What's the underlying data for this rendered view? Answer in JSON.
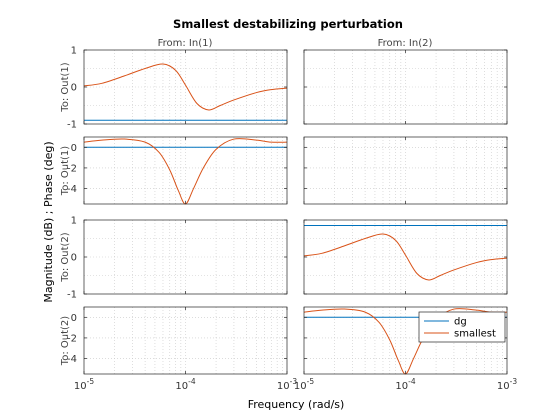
{
  "chart_data": {
    "type": "line",
    "title": "Smallest destabilizing perturbation",
    "xlabel": "Frequency  (rad/s)",
    "ylabel": "Magnitude (dB) ; Phase (deg)",
    "xscale": "log",
    "xlim": [
      1e-05,
      0.001
    ],
    "x_tick_labels": [
      "10^-5",
      "10^-4",
      "10^-3"
    ],
    "column_titles": [
      "From: In(1)",
      "From: In(2)"
    ],
    "row_titles": [
      "To: Out(1)",
      "To: Out(1)",
      "To: Out(2)",
      "To: Out(2)"
    ],
    "grid": true,
    "legend": {
      "placement": "inside-bottom-right",
      "panel": "row4-col2",
      "entries": [
        "dg",
        "smallest"
      ]
    },
    "series_colors": {
      "dg": "#0072bd",
      "smallest": "#d95319"
    },
    "panels": [
      {
        "row": 1,
        "col": 1,
        "quantity": "magnitude",
        "ylim": [
          -1,
          1
        ],
        "y_ticks": [
          -1,
          0,
          1
        ],
        "y_tick_labels": [
          "-1",
          "0",
          "1"
        ],
        "series": [
          {
            "name": "dg",
            "x": [
              1e-05,
              0.001
            ],
            "values": [
              -0.9,
              -0.9
            ]
          },
          {
            "name": "smallest",
            "x": [
              1e-05,
              1.5e-05,
              2.5e-05,
              4e-05,
              6e-05,
              8e-05,
              0.0001,
              0.00013,
              0.00017,
              0.00022,
              0.0003,
              0.0005,
              0.0007,
              0.001
            ],
            "values": [
              0.03,
              0.1,
              0.3,
              0.5,
              0.62,
              0.45,
              0.05,
              -0.45,
              -0.62,
              -0.5,
              -0.35,
              -0.15,
              -0.07,
              -0.03
            ]
          }
        ]
      },
      {
        "row": 2,
        "col": 1,
        "quantity": "phase",
        "ylim": [
          -5.5,
          1
        ],
        "y_ticks": [
          0,
          -2,
          -4
        ],
        "y_tick_labels": [
          "0",
          "-2",
          "-4"
        ],
        "series": [
          {
            "name": "dg",
            "x": [
              1e-05,
              0.001
            ],
            "values": [
              0,
              0
            ]
          },
          {
            "name": "smallest",
            "x": [
              1e-05,
              1.5e-05,
              2.5e-05,
              4e-05,
              5.5e-05,
              7e-05,
              8.5e-05,
              0.0001,
              0.00012,
              0.00015,
              0.0002,
              0.0003,
              0.0005,
              0.0007,
              0.001
            ],
            "values": [
              0.5,
              0.7,
              0.8,
              0.5,
              -0.5,
              -2.2,
              -4.2,
              -5.5,
              -4.0,
              -2.0,
              -0.2,
              0.8,
              0.7,
              0.5,
              0.5
            ]
          }
        ]
      },
      {
        "row": 3,
        "col": 1,
        "quantity": "magnitude",
        "ylim": [
          -1,
          1
        ],
        "y_ticks": [
          -1,
          0,
          1
        ],
        "y_tick_labels": [
          "-1",
          "0",
          "1"
        ],
        "series": []
      },
      {
        "row": 4,
        "col": 1,
        "quantity": "phase",
        "ylim": [
          -5.5,
          1
        ],
        "y_ticks": [
          0,
          -2,
          -4
        ],
        "y_tick_labels": [
          "0",
          "-2",
          "-4"
        ],
        "series": []
      },
      {
        "row": 1,
        "col": 2,
        "quantity": "magnitude",
        "ylim": [
          -1,
          1
        ],
        "y_ticks": [
          -1,
          0,
          1
        ],
        "series": []
      },
      {
        "row": 2,
        "col": 2,
        "quantity": "phase",
        "ylim": [
          -5.5,
          1
        ],
        "y_ticks": [
          0,
          -2,
          -4
        ],
        "series": []
      },
      {
        "row": 3,
        "col": 2,
        "quantity": "magnitude",
        "ylim": [
          -1,
          1
        ],
        "y_ticks": [
          -1,
          0,
          1
        ],
        "series": [
          {
            "name": "dg",
            "x": [
              1e-05,
              0.001
            ],
            "values": [
              0.85,
              0.85
            ]
          },
          {
            "name": "smallest",
            "x": [
              1e-05,
              1.5e-05,
              2.5e-05,
              4e-05,
              6e-05,
              8e-05,
              0.0001,
              0.00013,
              0.00017,
              0.00022,
              0.0003,
              0.0005,
              0.0007,
              0.001
            ],
            "values": [
              0.03,
              0.1,
              0.3,
              0.5,
              0.62,
              0.45,
              0.05,
              -0.45,
              -0.62,
              -0.5,
              -0.35,
              -0.15,
              -0.07,
              -0.03
            ]
          }
        ]
      },
      {
        "row": 4,
        "col": 2,
        "quantity": "phase",
        "ylim": [
          -5.5,
          1
        ],
        "y_ticks": [
          0,
          -2,
          -4
        ],
        "series": [
          {
            "name": "dg",
            "x": [
              1e-05,
              0.001
            ],
            "values": [
              0,
              0
            ]
          },
          {
            "name": "smallest",
            "x": [
              1e-05,
              1.5e-05,
              2.5e-05,
              4e-05,
              5.5e-05,
              7e-05,
              8.5e-05,
              0.0001,
              0.00012,
              0.00015,
              0.0002,
              0.0003,
              0.0005,
              0.0007,
              0.001
            ],
            "values": [
              0.5,
              0.7,
              0.8,
              0.5,
              -0.5,
              -2.2,
              -4.2,
              -5.5,
              -4.0,
              -2.0,
              -0.2,
              0.8,
              0.7,
              0.5,
              0.5
            ]
          }
        ]
      }
    ]
  }
}
